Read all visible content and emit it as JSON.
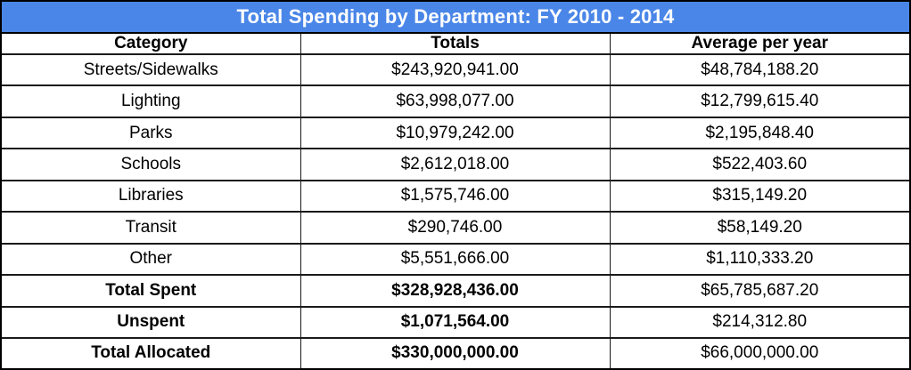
{
  "chart_data": {
    "type": "table",
    "title": "Total Spending by Department: FY 2010 - 2014",
    "columns": [
      "Category",
      "Totals",
      "Average per year"
    ],
    "rows": [
      [
        "Streets/Sidewalks",
        "$243,920,941.00",
        "$48,784,188.20"
      ],
      [
        "Lighting",
        "$63,998,077.00",
        "$12,799,615.40"
      ],
      [
        "Parks",
        "$10,979,242.00",
        "$2,195,848.40"
      ],
      [
        "Schools",
        "$2,612,018.00",
        "$522,403.60"
      ],
      [
        "Libraries",
        "$1,575,746.00",
        "$315,149.20"
      ],
      [
        "Transit",
        "$290,746.00",
        "$58,149.20"
      ],
      [
        "Other",
        "$5,551,666.00",
        "$1,110,333.20"
      ],
      [
        "Total Spent",
        "$328,928,436.00",
        "$65,785,687.20"
      ],
      [
        "Unspent",
        "$1,071,564.00",
        "$214,312.80"
      ],
      [
        "Total Allocated",
        "$330,000,000.00",
        "$66,000,000.00"
      ]
    ],
    "bold_summary_rows": [
      "Total Spent",
      "Unspent",
      "Total Allocated"
    ],
    "layout_hints": {
      "banner_color": "#4a86e8",
      "banner_text_color": "#ffffff",
      "grid_color": "#1a1a1a",
      "values_per_year_divisor": 5
    }
  }
}
